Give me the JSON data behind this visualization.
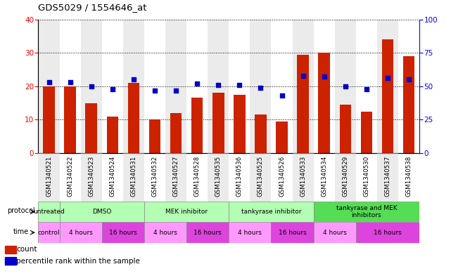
{
  "title": "GDS5029 / 1554646_at",
  "samples": [
    "GSM1340521",
    "GSM1340522",
    "GSM1340523",
    "GSM1340524",
    "GSM1340531",
    "GSM1340532",
    "GSM1340527",
    "GSM1340528",
    "GSM1340535",
    "GSM1340536",
    "GSM1340525",
    "GSM1340526",
    "GSM1340533",
    "GSM1340534",
    "GSM1340529",
    "GSM1340530",
    "GSM1340537",
    "GSM1340538"
  ],
  "counts": [
    20,
    20,
    15,
    11,
    21,
    10,
    12,
    16.5,
    18,
    17.5,
    11.5,
    9.5,
    29.5,
    30,
    14.5,
    12.5,
    34,
    29
  ],
  "percentiles": [
    53,
    53,
    50,
    48,
    55,
    47,
    47,
    52,
    51,
    51,
    49,
    43,
    58,
    57,
    50,
    48,
    56,
    55
  ],
  "bar_color": "#cc2200",
  "dot_color": "#0000cc",
  "ylim_left": [
    0,
    40
  ],
  "ylim_right": [
    0,
    100
  ],
  "yticks_left": [
    0,
    10,
    20,
    30,
    40
  ],
  "yticks_right": [
    0,
    25,
    50,
    75,
    100
  ],
  "protocol_groups": [
    {
      "label": "untreated",
      "start": 0,
      "end": 1,
      "light": true
    },
    {
      "label": "DMSO",
      "start": 1,
      "end": 5,
      "light": true
    },
    {
      "label": "MEK inhibitor",
      "start": 5,
      "end": 9,
      "light": true
    },
    {
      "label": "tankyrase inhibitor",
      "start": 9,
      "end": 13,
      "light": true
    },
    {
      "label": "tankyrase and MEK\ninhibitors",
      "start": 13,
      "end": 18,
      "light": false
    }
  ],
  "time_groups": [
    {
      "label": "control",
      "start": 0,
      "end": 1,
      "dark": false
    },
    {
      "label": "4 hours",
      "start": 1,
      "end": 3,
      "dark": false
    },
    {
      "label": "16 hours",
      "start": 3,
      "end": 5,
      "dark": true
    },
    {
      "label": "4 hours",
      "start": 5,
      "end": 7,
      "dark": false
    },
    {
      "label": "16 hours",
      "start": 7,
      "end": 9,
      "dark": true
    },
    {
      "label": "4 hours",
      "start": 9,
      "end": 11,
      "dark": false
    },
    {
      "label": "16 hours",
      "start": 11,
      "end": 13,
      "dark": true
    },
    {
      "label": "4 hours",
      "start": 13,
      "end": 15,
      "dark": false
    },
    {
      "label": "16 hours",
      "start": 15,
      "end": 18,
      "dark": true
    }
  ],
  "proto_color_light": "#b3ffb3",
  "proto_color_dark": "#55dd55",
  "time_color_light": "#ff99ff",
  "time_color_dark": "#dd44dd",
  "legend_count_label": "count",
  "legend_pct_label": "percentile rank within the sample",
  "col_bg_color": "#d8d8d8",
  "col_bg_alpha": 0.5
}
